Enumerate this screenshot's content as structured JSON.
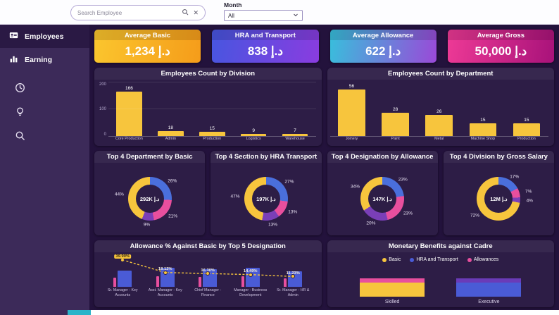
{
  "topbar": {
    "search_placeholder": "Search Employee",
    "month_label": "Month",
    "month_value": "All"
  },
  "sidebar": {
    "items": [
      {
        "label": "Employees"
      },
      {
        "label": "Earning"
      }
    ]
  },
  "kpis": [
    {
      "title": "Average Basic",
      "value": "1,234 د.إ",
      "gradient": [
        "#fbc62e",
        "#f59c1a"
      ]
    },
    {
      "title": "HRA and Transport",
      "value": "838 د.إ",
      "gradient": [
        "#4756e0",
        "#8a3ce0"
      ]
    },
    {
      "title": "Average Allowance",
      "value": "622 د.إ",
      "gradient": [
        "#38bfdc",
        "#9a49d8"
      ]
    },
    {
      "title": "Average Gross",
      "value": "50,000 د.إ",
      "gradient": [
        "#ee3a96",
        "#a8127a"
      ]
    }
  ],
  "chart_data": [
    {
      "type": "bar",
      "title": "Employees Count by Division",
      "categories": [
        "Core Production",
        "Admin",
        "Production",
        "Logistics",
        "Warehouse"
      ],
      "values": [
        166,
        18,
        15,
        9,
        7
      ],
      "ylim": [
        0,
        200
      ],
      "yticks": [
        0,
        100,
        200
      ],
      "bar_color": "#f7c53d"
    },
    {
      "type": "bar",
      "title": "Employees Count by Department",
      "categories": [
        "Joinery",
        "Paint",
        "Metal",
        "Machine Shop",
        "Production"
      ],
      "values": [
        56,
        28,
        26,
        15,
        15
      ],
      "ylim": [
        0,
        65
      ],
      "yticks": [],
      "bar_color": "#f7c53d"
    },
    {
      "type": "donut",
      "title": "Top 4 Department by Basic",
      "center": "292K د.إ",
      "segments": [
        {
          "label": "26%",
          "value": 26,
          "color": "#4a6fdc"
        },
        {
          "label": "21%",
          "value": 21,
          "color": "#e84f9e"
        },
        {
          "label": "9%",
          "value": 9,
          "color": "#7a3fb8"
        },
        {
          "label": "44%",
          "value": 44,
          "color": "#f7c53d"
        }
      ]
    },
    {
      "type": "donut",
      "title": "Top 4 Section by HRA Transport",
      "center": "197K د.إ",
      "segments": [
        {
          "label": "27%",
          "value": 27,
          "color": "#4a6fdc"
        },
        {
          "label": "13%",
          "value": 13,
          "color": "#e84f9e"
        },
        {
          "label": "13%",
          "value": 13,
          "color": "#7a3fb8"
        },
        {
          "label": "47%",
          "value": 47,
          "color": "#f7c53d"
        }
      ]
    },
    {
      "type": "donut",
      "title": "Top 4 Designation by Allowance",
      "center": "147K د.إ",
      "segments": [
        {
          "label": "23%",
          "value": 23,
          "color": "#4a6fdc"
        },
        {
          "label": "23%",
          "value": 23,
          "color": "#e84f9e"
        },
        {
          "label": "20%",
          "value": 20,
          "color": "#7a3fb8"
        },
        {
          "label": "34%",
          "value": 34,
          "color": "#f7c53d"
        }
      ]
    },
    {
      "type": "donut",
      "title": "Top 4 Division by Gross Salary",
      "center": "12M د.إ",
      "segments": [
        {
          "label": "17%",
          "value": 17,
          "color": "#4a6fdc"
        },
        {
          "label": "7%",
          "value": 7,
          "color": "#e84f9e"
        },
        {
          "label": "4%",
          "value": 4,
          "color": "#7a3fb8"
        },
        {
          "label": "72%",
          "value": 72,
          "color": "#f7c53d"
        }
      ]
    },
    {
      "type": "combo",
      "title": "Allowance % Against Basic by Top 5 Designation",
      "categories": [
        "Sr. Manager - Key Accounts",
        "Asst. Manager - Key Accounts",
        "Chief Manager - Finance",
        "Manager - Business Development",
        "Sr. Manager - HR & Admin"
      ],
      "line_values": [
        39.9,
        18.12,
        16.3,
        14.49,
        11.23
      ],
      "line_labels": [
        "39.90%",
        "18.12%",
        "16.30%",
        "14.49%",
        "11.23%"
      ],
      "highlight_index": 0,
      "line_max": 45,
      "bar_rel": [
        0.5,
        0.58,
        0.54,
        0.58,
        0.48
      ],
      "line_color": "#f7c53d",
      "bar_color": "#4a5bd6",
      "accent_color": "#e84f9e"
    },
    {
      "type": "stacked",
      "title": "Monetary Benefits against Cadre",
      "legend": [
        {
          "label": "Basic",
          "color": "#f7c53d"
        },
        {
          "label": "HRA and Transport",
          "color": "#4a5bd6"
        },
        {
          "label": "Allowances",
          "color": "#e84f9e"
        }
      ],
      "categories": [
        "Skilled",
        "Executive"
      ],
      "bars": [
        {
          "category": "Skilled",
          "segments": [
            {
              "color": "#e84f9e",
              "h": 6
            },
            {
              "color": "#f7c53d",
              "h": 20
            }
          ]
        },
        {
          "category": "Executive",
          "segments": [
            {
              "color": "#6a3bb8",
              "h": 6
            },
            {
              "color": "#4a5bd6",
              "h": 20
            }
          ]
        }
      ]
    }
  ]
}
